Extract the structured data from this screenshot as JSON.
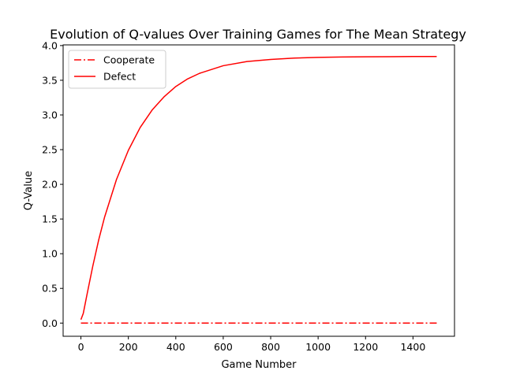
{
  "chart_data": {
    "type": "line",
    "title": "Evolution of Q-values Over Training Games for The Mean Strategy",
    "xlabel": "Game Number",
    "ylabel": "Q-Value",
    "xlim": [
      -75,
      1575
    ],
    "ylim": [
      -0.19,
      4.01
    ],
    "xticks": [
      0,
      200,
      400,
      600,
      800,
      1000,
      1200,
      1400
    ],
    "yticks": [
      0.0,
      0.5,
      1.0,
      1.5,
      2.0,
      2.5,
      3.0,
      3.5,
      4.0
    ],
    "ytick_labels": [
      "0.0",
      "0.5",
      "1.0",
      "1.5",
      "2.0",
      "2.5",
      "3.0",
      "3.5",
      "4.0"
    ],
    "grid": false,
    "legend": {
      "placement": "top-left"
    },
    "series": [
      {
        "name": "Cooperate",
        "color": "#ff0000",
        "style": "dash-dot",
        "x": [
          0,
          100,
          200,
          300,
          400,
          500,
          600,
          700,
          800,
          900,
          1000,
          1100,
          1200,
          1300,
          1400,
          1500
        ],
        "y": [
          0,
          0,
          0,
          0,
          0,
          0,
          0,
          0,
          0,
          0,
          0,
          0,
          0,
          0,
          0,
          0
        ]
      },
      {
        "name": "Defect",
        "color": "#ff0000",
        "style": "solid",
        "x": [
          0,
          10,
          25,
          50,
          75,
          100,
          150,
          200,
          250,
          300,
          350,
          400,
          450,
          500,
          600,
          700,
          800,
          900,
          1000,
          1100,
          1200,
          1300,
          1400,
          1500
        ],
        "y": [
          0.05,
          0.14,
          0.4,
          0.82,
          1.2,
          1.53,
          2.07,
          2.49,
          2.82,
          3.07,
          3.26,
          3.41,
          3.52,
          3.6,
          3.71,
          3.77,
          3.8,
          3.82,
          3.83,
          3.835,
          3.838,
          3.84,
          3.842,
          3.843
        ]
      }
    ]
  }
}
